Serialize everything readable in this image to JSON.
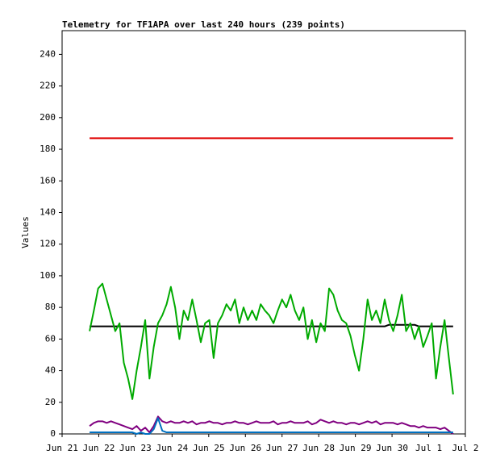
{
  "chart_data": {
    "type": "line",
    "title": "Telemetry for TF1APA over last 240 hours (239 points)",
    "y_label": "Values",
    "xlim": [
      0,
      264
    ],
    "xticks": [
      {
        "value": 0,
        "label": "Jun 21"
      },
      {
        "value": 24,
        "label": "Jun 22"
      },
      {
        "value": 48,
        "label": "Jun 23"
      },
      {
        "value": 72,
        "label": "Jun 24"
      },
      {
        "value": 96,
        "label": "Jun 25"
      },
      {
        "value": 120,
        "label": "Jun 26"
      },
      {
        "value": 144,
        "label": "Jun 27"
      },
      {
        "value": 168,
        "label": "Jun 28"
      },
      {
        "value": 192,
        "label": "Jun 29"
      },
      {
        "value": 216,
        "label": "Jun 30"
      },
      {
        "value": 240,
        "label": "Jul 1"
      },
      {
        "value": 264,
        "label": "Jul 2"
      }
    ],
    "ylim": [
      0,
      255
    ],
    "yticks": [
      0,
      20,
      40,
      60,
      80,
      100,
      120,
      140,
      160,
      180,
      200,
      220,
      240
    ],
    "x": [
      18,
      20.8,
      23.6,
      26.4,
      29.2,
      32,
      34.8,
      37.6,
      40.4,
      43.2,
      46,
      48.8,
      51.6,
      54.4,
      57.2,
      60,
      62.8,
      65.6,
      68.4,
      71.2,
      74,
      76.8,
      79.6,
      82.4,
      85.2,
      88,
      90.8,
      93.6,
      96.4,
      99.2,
      102,
      104.8,
      107.6,
      110.4,
      113.2,
      116,
      118.8,
      121.6,
      124.4,
      127.2,
      130,
      132.8,
      135.6,
      138.4,
      141.2,
      144,
      146.8,
      149.6,
      152.4,
      155.2,
      158,
      160.8,
      163.6,
      166.4,
      169.2,
      172,
      174.8,
      177.6,
      180.4,
      183.2,
      186,
      188.8,
      191.6,
      194.4,
      197.2,
      200,
      202.8,
      205.6,
      208.4,
      211.2,
      214,
      216.8,
      219.6,
      222.4,
      225.2,
      228,
      230.8,
      233.6,
      236.4,
      239.2,
      242,
      244.8,
      247.6,
      250.4,
      253.2,
      256
    ],
    "series": [
      {
        "color": "#e00000",
        "values": [
          187,
          187,
          187,
          187,
          187,
          187,
          187,
          187,
          187,
          187,
          187,
          187,
          187,
          187,
          187,
          187,
          187,
          187,
          187,
          187,
          187,
          187,
          187,
          187,
          187,
          187,
          187,
          187,
          187,
          187,
          187,
          187,
          187,
          187,
          187,
          187,
          187,
          187,
          187,
          187,
          187,
          187,
          187,
          187,
          187,
          187,
          187,
          187,
          187,
          187,
          187,
          187,
          187,
          187,
          187,
          187,
          187,
          187,
          187,
          187,
          187,
          187,
          187,
          187,
          187,
          187,
          187,
          187,
          187,
          187,
          187,
          187,
          187,
          187,
          187,
          187,
          187,
          187,
          187,
          187,
          187,
          187,
          187,
          187,
          187,
          187
        ]
      },
      {
        "color": "#000000",
        "values": [
          68,
          68,
          68,
          68,
          68,
          68,
          68,
          68,
          68,
          68,
          68,
          68,
          68,
          68,
          68,
          68,
          68,
          68,
          68,
          68,
          68,
          68,
          68,
          68,
          68,
          68,
          68,
          68,
          68,
          68,
          68,
          68,
          68,
          68,
          68,
          68,
          68,
          68,
          68,
          68,
          68,
          68,
          68,
          68,
          68,
          68,
          68,
          68,
          68,
          68,
          68,
          68,
          68,
          68,
          68,
          68,
          68,
          68,
          68,
          68,
          68,
          68,
          68,
          68,
          68,
          68,
          68,
          68,
          68,
          68,
          69,
          69,
          69,
          69,
          69,
          69,
          69,
          68,
          68,
          68,
          68,
          68,
          68,
          68,
          68,
          68
        ]
      },
      {
        "color": "#00aa00",
        "values": [
          65,
          78,
          92,
          95,
          85,
          75,
          65,
          70,
          45,
          35,
          22,
          40,
          55,
          72,
          35,
          55,
          70,
          75,
          82,
          93,
          80,
          60,
          78,
          72,
          85,
          72,
          58,
          70,
          72,
          48,
          70,
          75,
          82,
          78,
          85,
          70,
          80,
          72,
          78,
          72,
          82,
          78,
          75,
          70,
          78,
          85,
          80,
          88,
          78,
          72,
          80,
          60,
          72,
          58,
          70,
          65,
          92,
          88,
          78,
          72,
          70,
          62,
          50,
          40,
          60,
          85,
          72,
          78,
          70,
          85,
          72,
          65,
          75,
          88,
          65,
          70,
          60,
          68,
          55,
          62,
          70,
          35,
          55,
          72,
          48,
          25
        ]
      },
      {
        "color": "#800080",
        "values": [
          5,
          7,
          8,
          8,
          7,
          8,
          7,
          6,
          5,
          4,
          3,
          5,
          2,
          4,
          1,
          5,
          11,
          8,
          7,
          8,
          7,
          7,
          8,
          7,
          8,
          6,
          7,
          7,
          8,
          7,
          7,
          6,
          7,
          7,
          8,
          7,
          7,
          6,
          7,
          8,
          7,
          7,
          7,
          8,
          6,
          7,
          7,
          8,
          7,
          7,
          7,
          8,
          6,
          7,
          9,
          8,
          7,
          8,
          7,
          7,
          6,
          7,
          7,
          6,
          7,
          8,
          7,
          8,
          6,
          7,
          7,
          7,
          6,
          7,
          6,
          5,
          5,
          4,
          5,
          4,
          4,
          4,
          3,
          4,
          2,
          0
        ]
      },
      {
        "color": "#0070c0",
        "values": [
          1,
          1,
          1,
          1,
          1,
          1,
          1,
          1,
          1,
          1,
          1,
          0,
          1,
          0,
          0,
          3,
          10,
          2,
          1,
          1,
          1,
          1,
          1,
          1,
          1,
          1,
          1,
          1,
          1,
          1,
          1,
          1,
          1,
          1,
          1,
          1,
          1,
          1,
          1,
          1,
          1,
          1,
          1,
          1,
          1,
          1,
          1,
          1,
          1,
          1,
          1,
          1,
          1,
          1,
          1,
          1,
          1,
          1,
          1,
          1,
          1,
          1,
          1,
          1,
          1,
          1,
          1,
          1,
          1,
          1,
          1,
          1,
          1,
          1,
          1,
          1,
          1,
          1,
          1,
          1,
          1,
          1,
          1,
          1,
          1,
          1
        ]
      }
    ]
  }
}
